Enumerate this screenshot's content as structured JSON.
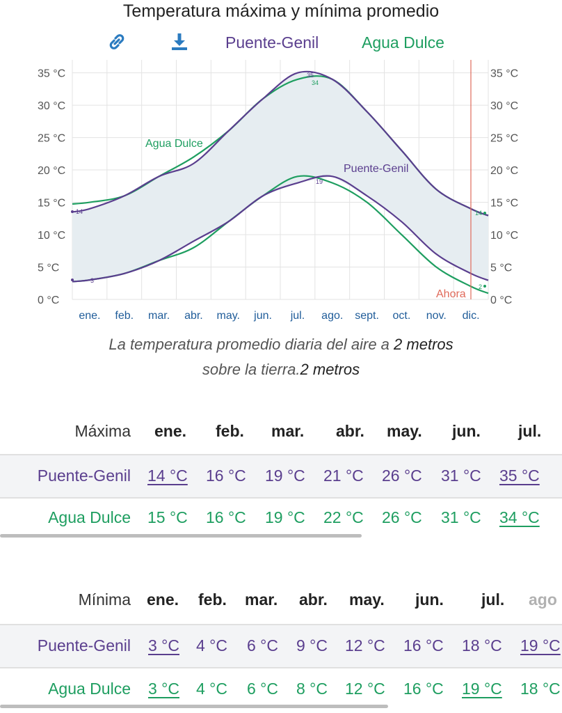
{
  "title": "Temperatura máxima y mínima promedio",
  "toolbar": {
    "link_icon": "link-icon",
    "download_icon": "download-icon",
    "legend": [
      "Puente-Genil",
      "Agua Dulce"
    ]
  },
  "colors": {
    "puente_genil": "#5a3e8e",
    "agua_dulce": "#1e9e60",
    "band": "#e6edf1",
    "now_line": "#e06a5a"
  },
  "chart_data": {
    "type": "line",
    "x_ticks": [
      "ene.",
      "feb.",
      "mar.",
      "abr.",
      "may.",
      "jun.",
      "jul.",
      "ago.",
      "sept.",
      "oct.",
      "nov.",
      "dic."
    ],
    "y_ticks": [
      "0 °C",
      "5 °C",
      "10 °C",
      "15 °C",
      "20 °C",
      "25 °C",
      "30 °C",
      "35 °C"
    ],
    "ylim": [
      0,
      37
    ],
    "grid": true,
    "series": [
      {
        "name": "Puente-Genil",
        "kind": "max",
        "values": [
          14,
          16,
          19,
          21,
          26,
          31,
          35,
          34,
          29,
          23,
          17,
          14
        ],
        "color": "#5a3e8e"
      },
      {
        "name": "Puente-Genil",
        "kind": "min",
        "values": [
          3,
          4,
          6,
          9,
          12,
          16,
          18,
          19,
          16,
          12,
          7,
          4
        ],
        "color": "#5a3e8e"
      },
      {
        "name": "Agua Dulce",
        "kind": "max",
        "values": [
          15,
          16,
          19,
          22,
          26,
          31,
          34,
          34,
          29,
          23,
          17,
          14
        ],
        "color": "#1e9e60"
      },
      {
        "name": "Agua Dulce",
        "kind": "min",
        "values": [
          3,
          4,
          6,
          8,
          12,
          16,
          19,
          18,
          15,
          10,
          5,
          2
        ],
        "color": "#1e9e60"
      }
    ],
    "annotations": {
      "series_labels": [
        "Agua Dulce",
        "Puente-Genil"
      ],
      "point_labels": [
        "14",
        "3",
        "35",
        "34",
        "19",
        "14",
        "2"
      ],
      "now_label": "Ahora"
    }
  },
  "caption": {
    "line1_prefix": "La temperatura promedio diaria del aire a ",
    "line1_bold": "2 metros",
    "line2_prefix": "sobre la tierra.",
    "line2_bold": "2 metros"
  },
  "table_max": {
    "header": "Máxima",
    "months": [
      "ene.",
      "feb.",
      "mar.",
      "abr.",
      "may.",
      "jun.",
      "jul."
    ],
    "rows": [
      {
        "name": "Puente-Genil",
        "values": [
          "14 °C",
          "16 °C",
          "19 °C",
          "21 °C",
          "26 °C",
          "31 °C",
          "35 °C"
        ]
      },
      {
        "name": "Agua Dulce",
        "values": [
          "15 °C",
          "16 °C",
          "19 °C",
          "22 °C",
          "26 °C",
          "31 °C",
          "34 °C"
        ]
      }
    ]
  },
  "table_min": {
    "header": "Mínima",
    "months": [
      "ene.",
      "feb.",
      "mar.",
      "abr.",
      "may.",
      "jun.",
      "jul.",
      "ago"
    ],
    "rows": [
      {
        "name": "Puente-Genil",
        "values": [
          "3 °C",
          "4 °C",
          "6 °C",
          "9 °C",
          "12 °C",
          "16 °C",
          "18 °C",
          "19 °C"
        ]
      },
      {
        "name": "Agua Dulce",
        "values": [
          "3 °C",
          "4 °C",
          "6 °C",
          "8 °C",
          "12 °C",
          "16 °C",
          "19 °C",
          "18 °C"
        ]
      }
    ]
  }
}
